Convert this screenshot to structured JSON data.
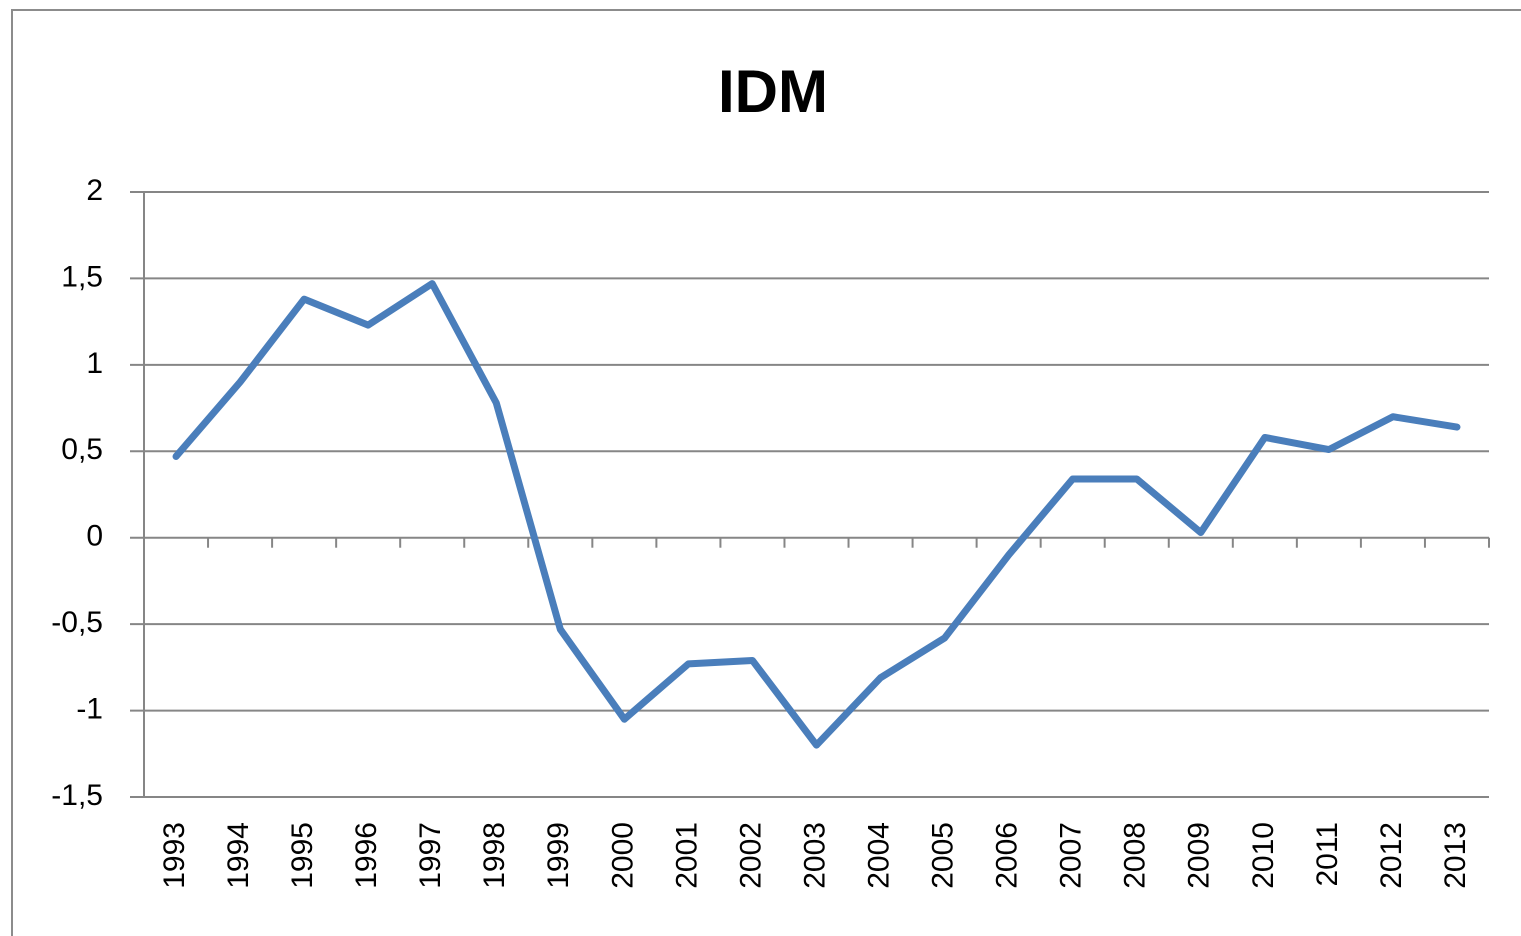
{
  "chart_data": {
    "type": "line",
    "title": "IDM",
    "categories": [
      "1993",
      "1994",
      "1995",
      "1996",
      "1997",
      "1998",
      "1999",
      "2000",
      "2001",
      "2002",
      "2003",
      "2004",
      "2005",
      "2006",
      "2007",
      "2008",
      "2009",
      "2010",
      "2011",
      "2012",
      "2013"
    ],
    "series": [
      {
        "name": "IDM",
        "color": "#4a7ebb",
        "values": [
          0.47,
          0.9,
          1.38,
          1.23,
          1.47,
          0.78,
          -0.53,
          -1.05,
          -0.73,
          -0.71,
          -1.2,
          -0.81,
          -0.58,
          -0.1,
          0.34,
          0.34,
          0.03,
          0.58,
          0.51,
          0.7,
          0.64
        ]
      }
    ],
    "ylim": [
      -1.5,
      2
    ],
    "yticks": [
      {
        "value": -1.5,
        "label": "-1,5"
      },
      -1,
      {
        "value": -0.5,
        "label": "-0,5"
      },
      0,
      {
        "value": 0.5,
        "label": "0,5"
      },
      1,
      {
        "value": 1.5,
        "label": "1,5"
      },
      2
    ],
    "grid": true
  }
}
